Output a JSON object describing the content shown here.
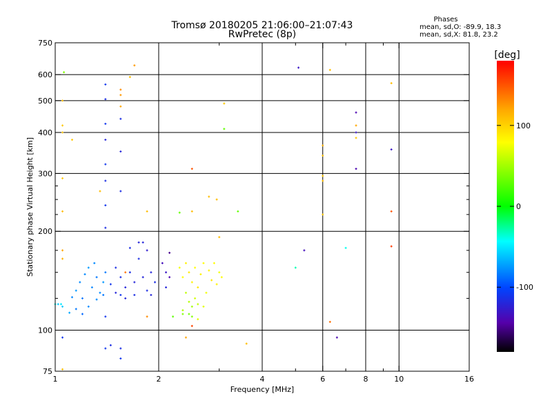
{
  "chart_data": {
    "type": "scatter",
    "title": "Tromsø 20180205 21:06:00–21:07:43",
    "subtitle": "RwPretec (8p)",
    "xlabel": "Frequency [MHz]",
    "ylabel": "Stationary phase Virtual Height [km]",
    "xscale": "log2",
    "yscale": "log",
    "xlim": [
      1,
      16
    ],
    "ylim": [
      75,
      750
    ],
    "x_ticks": [
      1,
      2,
      4,
      6,
      8,
      10,
      16
    ],
    "x_tick_labels": [
      "1",
      "2",
      "4",
      "6",
      "8",
      "10",
      "16"
    ],
    "y_ticks": [
      75,
      100,
      200,
      300,
      400,
      500,
      600,
      750
    ],
    "y_tick_labels": [
      "75",
      "100",
      "200",
      "300",
      "400",
      "500",
      "600",
      "750"
    ],
    "minor_x_ticks": [
      3,
      5,
      7,
      9
    ],
    "minor_y_ticks": [
      125,
      150,
      175,
      225,
      250,
      275
    ],
    "grid": true,
    "legend": {
      "title": "Phases",
      "lines": [
        "mean, sd,O: -89.9, 18.3",
        "mean, sd,X:  81.8, 23.2"
      ],
      "placement": "top-right"
    },
    "colorbar": {
      "label": "[deg]",
      "range": [
        -180,
        180
      ],
      "ticks": [
        100,
        0,
        -100
      ],
      "tick_labels": [
        "100",
        "0",
        "-100"
      ],
      "stops": [
        "#ff0000",
        "#ffaa00",
        "#ffff00",
        "#00ff00",
        "#00ffff",
        "#0044ff",
        "#5500aa",
        "#000000"
      ]
    },
    "series": [
      {
        "values": [
          {
            "x": 1.02,
            "y": 120,
            "phase": -60
          },
          {
            "x": 1.05,
            "y": 118,
            "phase": -60
          },
          {
            "x": 1.1,
            "y": 113,
            "phase": -70
          },
          {
            "x": 1.12,
            "y": 126,
            "phase": -80
          },
          {
            "x": 1.15,
            "y": 132,
            "phase": -75
          },
          {
            "x": 1.18,
            "y": 140,
            "phase": -80
          },
          {
            "x": 1.2,
            "y": 125,
            "phase": -85
          },
          {
            "x": 1.22,
            "y": 148,
            "phase": -80
          },
          {
            "x": 1.25,
            "y": 155,
            "phase": -75
          },
          {
            "x": 1.28,
            "y": 135,
            "phase": -80
          },
          {
            "x": 1.3,
            "y": 160,
            "phase": -80
          },
          {
            "x": 1.32,
            "y": 145,
            "phase": -85
          },
          {
            "x": 1.35,
            "y": 130,
            "phase": -80
          },
          {
            "x": 1.38,
            "y": 140,
            "phase": -75
          },
          {
            "x": 1.4,
            "y": 150,
            "phase": -85
          },
          {
            "x": 1.15,
            "y": 116,
            "phase": -85
          },
          {
            "x": 1.2,
            "y": 112,
            "phase": -90
          },
          {
            "x": 1.25,
            "y": 118,
            "phase": -80
          },
          {
            "x": 1.32,
            "y": 124,
            "phase": -80
          },
          {
            "x": 1.38,
            "y": 128,
            "phase": -85
          },
          {
            "x": 1.45,
            "y": 138,
            "phase": -110
          },
          {
            "x": 1.5,
            "y": 130,
            "phase": -120
          },
          {
            "x": 1.55,
            "y": 145,
            "phase": -115
          },
          {
            "x": 1.6,
            "y": 135,
            "phase": -120
          },
          {
            "x": 1.65,
            "y": 150,
            "phase": -115
          },
          {
            "x": 1.7,
            "y": 140,
            "phase": -120
          },
          {
            "x": 1.75,
            "y": 165,
            "phase": -115
          },
          {
            "x": 1.8,
            "y": 145,
            "phase": -120
          },
          {
            "x": 1.85,
            "y": 132,
            "phase": -115
          },
          {
            "x": 1.9,
            "y": 150,
            "phase": -120
          },
          {
            "x": 1.95,
            "y": 140,
            "phase": -115
          },
          {
            "x": 1.5,
            "y": 155,
            "phase": -115
          },
          {
            "x": 1.6,
            "y": 125,
            "phase": -120
          },
          {
            "x": 1.7,
            "y": 128,
            "phase": -115
          },
          {
            "x": 1.75,
            "y": 185,
            "phase": -120
          },
          {
            "x": 1.8,
            "y": 185,
            "phase": -120
          },
          {
            "x": 1.85,
            "y": 175,
            "phase": -125
          },
          {
            "x": 1.65,
            "y": 178,
            "phase": -115
          },
          {
            "x": 1.55,
            "y": 128,
            "phase": -110
          },
          {
            "x": 1.9,
            "y": 128,
            "phase": -120
          },
          {
            "x": 1.4,
            "y": 560,
            "phase": -110
          },
          {
            "x": 1.4,
            "y": 505,
            "phase": -115
          },
          {
            "x": 1.4,
            "y": 425,
            "phase": -110
          },
          {
            "x": 1.4,
            "y": 380,
            "phase": -120
          },
          {
            "x": 1.4,
            "y": 320,
            "phase": -110
          },
          {
            "x": 1.4,
            "y": 285,
            "phase": -115
          },
          {
            "x": 1.4,
            "y": 240,
            "phase": -110
          },
          {
            "x": 1.4,
            "y": 205,
            "phase": -115
          },
          {
            "x": 1.55,
            "y": 440,
            "phase": -115
          },
          {
            "x": 1.55,
            "y": 350,
            "phase": -120
          },
          {
            "x": 1.55,
            "y": 265,
            "phase": -115
          },
          {
            "x": 1.4,
            "y": 88,
            "phase": -110
          },
          {
            "x": 1.55,
            "y": 88,
            "phase": -115
          },
          {
            "x": 1.55,
            "y": 82,
            "phase": -110
          },
          {
            "x": 1.4,
            "y": 110,
            "phase": -110
          },
          {
            "x": 1.05,
            "y": 95,
            "phase": -110
          },
          {
            "x": 1.45,
            "y": 90,
            "phase": -115
          },
          {
            "x": 6.6,
            "y": 95,
            "phase": -140
          },
          {
            "x": 7.5,
            "y": 460,
            "phase": -140
          },
          {
            "x": 7.5,
            "y": 400,
            "phase": -130
          },
          {
            "x": 9.5,
            "y": 355,
            "phase": -130
          },
          {
            "x": 7.5,
            "y": 310,
            "phase": -140
          },
          {
            "x": 5.3,
            "y": 175,
            "phase": -135
          },
          {
            "x": 5.1,
            "y": 630,
            "phase": -130
          }
        ]
      },
      {
        "values": [
          {
            "x": 2.3,
            "y": 155,
            "phase": 75
          },
          {
            "x": 2.35,
            "y": 145,
            "phase": 80
          },
          {
            "x": 2.4,
            "y": 160,
            "phase": 85
          },
          {
            "x": 2.45,
            "y": 150,
            "phase": 90
          },
          {
            "x": 2.5,
            "y": 140,
            "phase": 85
          },
          {
            "x": 2.55,
            "y": 155,
            "phase": 80
          },
          {
            "x": 2.6,
            "y": 135,
            "phase": 90
          },
          {
            "x": 2.65,
            "y": 148,
            "phase": 85
          },
          {
            "x": 2.7,
            "y": 160,
            "phase": 80
          },
          {
            "x": 2.75,
            "y": 130,
            "phase": 75
          },
          {
            "x": 2.8,
            "y": 152,
            "phase": 85
          },
          {
            "x": 2.85,
            "y": 142,
            "phase": 90
          },
          {
            "x": 2.9,
            "y": 160,
            "phase": 80
          },
          {
            "x": 2.95,
            "y": 138,
            "phase": 85
          },
          {
            "x": 3.0,
            "y": 150,
            "phase": 75
          },
          {
            "x": 3.05,
            "y": 145,
            "phase": 80
          },
          {
            "x": 2.4,
            "y": 130,
            "phase": 60
          },
          {
            "x": 2.45,
            "y": 122,
            "phase": 55
          },
          {
            "x": 2.5,
            "y": 118,
            "phase": 50
          },
          {
            "x": 2.55,
            "y": 125,
            "phase": 65
          },
          {
            "x": 2.6,
            "y": 120,
            "phase": 60
          },
          {
            "x": 2.7,
            "y": 118,
            "phase": 70
          },
          {
            "x": 2.35,
            "y": 115,
            "phase": 55
          },
          {
            "x": 2.5,
            "y": 110,
            "phase": 40
          },
          {
            "x": 2.6,
            "y": 108,
            "phase": 70
          },
          {
            "x": 2.45,
            "y": 112,
            "phase": 35
          },
          {
            "x": 3.0,
            "y": 192,
            "phase": 110
          },
          {
            "x": 2.8,
            "y": 255,
            "phase": 110
          },
          {
            "x": 2.95,
            "y": 250,
            "phase": 110
          },
          {
            "x": 2.5,
            "y": 230,
            "phase": 110
          },
          {
            "x": 3.1,
            "y": 490,
            "phase": 105
          },
          {
            "x": 1.7,
            "y": 640,
            "phase": 125
          },
          {
            "x": 6.3,
            "y": 620,
            "phase": 110
          },
          {
            "x": 6.0,
            "y": 365,
            "phase": 115
          },
          {
            "x": 6.0,
            "y": 340,
            "phase": 110
          },
          {
            "x": 6.0,
            "y": 295,
            "phase": 105
          },
          {
            "x": 6.0,
            "y": 285,
            "phase": 110
          },
          {
            "x": 6.0,
            "y": 225,
            "phase": 105
          },
          {
            "x": 7.5,
            "y": 420,
            "phase": 120
          },
          {
            "x": 7.5,
            "y": 385,
            "phase": 105
          },
          {
            "x": 9.5,
            "y": 565,
            "phase": 110
          },
          {
            "x": 9.5,
            "y": 230,
            "phase": 150
          },
          {
            "x": 9.5,
            "y": 180,
            "phase": 160
          },
          {
            "x": 6.3,
            "y": 106,
            "phase": 140
          },
          {
            "x": 3.6,
            "y": 91,
            "phase": 110
          },
          {
            "x": 2.4,
            "y": 95,
            "phase": 120
          },
          {
            "x": 2.5,
            "y": 103,
            "phase": 155
          },
          {
            "x": 2.5,
            "y": 310,
            "phase": 150
          },
          {
            "x": 1.55,
            "y": 540,
            "phase": 130
          },
          {
            "x": 1.55,
            "y": 520,
            "phase": 125
          },
          {
            "x": 1.55,
            "y": 480,
            "phase": 120
          },
          {
            "x": 1.05,
            "y": 500,
            "phase": 110
          },
          {
            "x": 1.05,
            "y": 420,
            "phase": 105
          },
          {
            "x": 1.05,
            "y": 400,
            "phase": 110
          },
          {
            "x": 1.05,
            "y": 290,
            "phase": 105
          },
          {
            "x": 1.05,
            "y": 230,
            "phase": 110
          },
          {
            "x": 1.05,
            "y": 175,
            "phase": 120
          },
          {
            "x": 1.05,
            "y": 165,
            "phase": 115
          },
          {
            "x": 1.05,
            "y": 76,
            "phase": 110
          },
          {
            "x": 1.12,
            "y": 380,
            "phase": 105
          },
          {
            "x": 1.35,
            "y": 265,
            "phase": 110
          },
          {
            "x": 1.85,
            "y": 230,
            "phase": 110
          },
          {
            "x": 1.65,
            "y": 590,
            "phase": 110
          },
          {
            "x": 1.85,
            "y": 110,
            "phase": 130
          },
          {
            "x": 1.6,
            "y": 150,
            "phase": 140
          },
          {
            "x": 1.06,
            "y": 610,
            "phase": 40
          },
          {
            "x": 2.3,
            "y": 228,
            "phase": 30
          },
          {
            "x": 3.1,
            "y": 410,
            "phase": 30
          },
          {
            "x": 3.4,
            "y": 230,
            "phase": 30
          },
          {
            "x": 2.2,
            "y": 110,
            "phase": 30
          },
          {
            "x": 2.35,
            "y": 112,
            "phase": 40
          },
          {
            "x": 5.0,
            "y": 155,
            "phase": -30
          },
          {
            "x": 7.0,
            "y": 178,
            "phase": -40
          },
          {
            "x": 1.0,
            "y": 120,
            "phase": -40
          },
          {
            "x": 1.04,
            "y": 120,
            "phase": -50
          },
          {
            "x": 2.1,
            "y": 150,
            "phase": -130
          },
          {
            "x": 2.15,
            "y": 145,
            "phase": -140
          },
          {
            "x": 2.05,
            "y": 160,
            "phase": -135
          },
          {
            "x": 2.1,
            "y": 135,
            "phase": -120
          },
          {
            "x": 2.15,
            "y": 172,
            "phase": -150
          }
        ]
      }
    ]
  }
}
